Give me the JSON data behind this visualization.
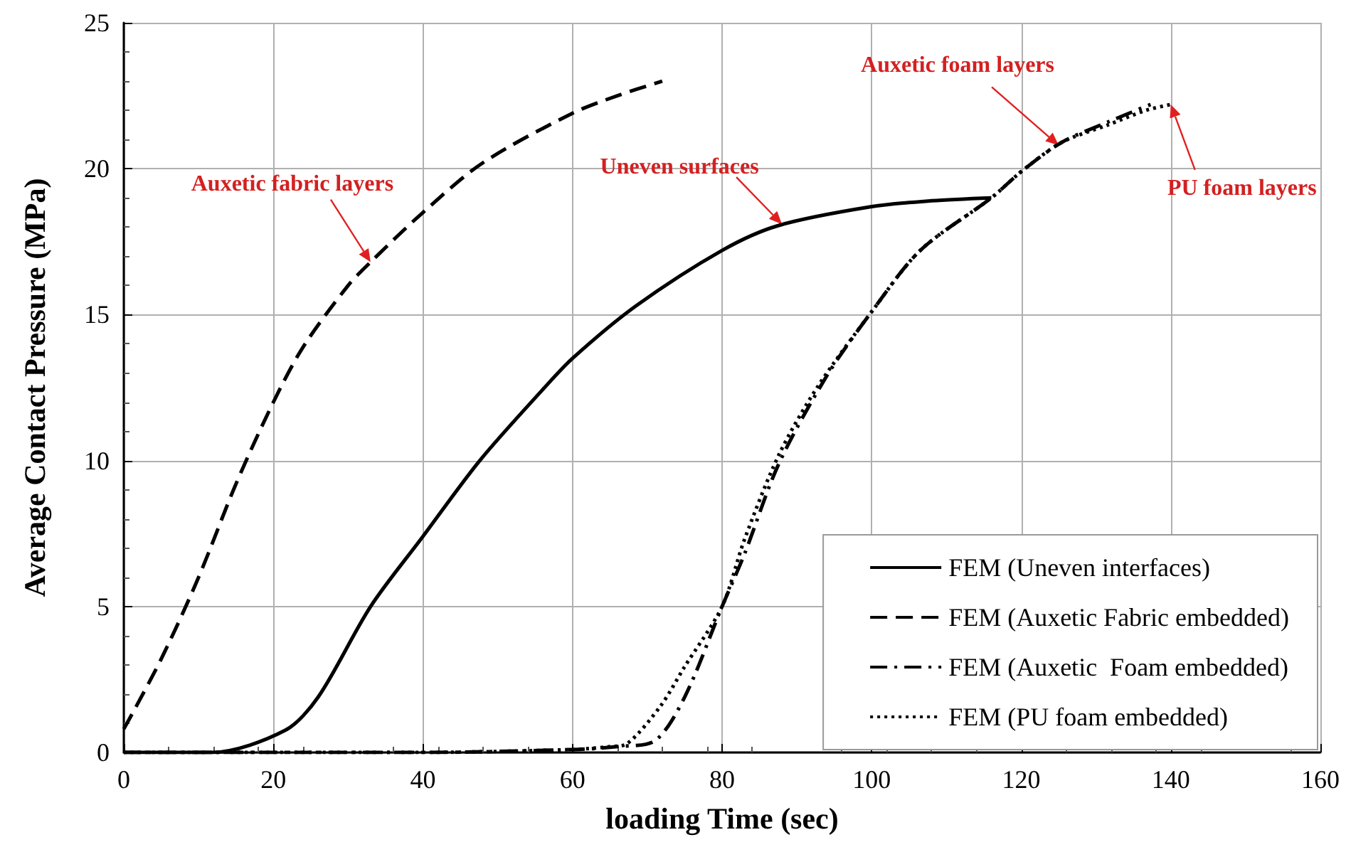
{
  "chart_data": {
    "type": "line",
    "xlabel": "loading Time (sec)",
    "ylabel": "Average Contact Pressure (MPa)",
    "xlim": [
      0,
      160
    ],
    "xticks": [
      0,
      20,
      40,
      60,
      80,
      100,
      120,
      140,
      160
    ],
    "ylim": [
      0,
      25
    ],
    "yticks": [
      0,
      5,
      10,
      15,
      20,
      25
    ],
    "grid": true,
    "legend": "bottom right",
    "marker": "none",
    "series": [
      {
        "name": "FEM (Uneven interfaces)",
        "color": "#000000",
        "line_style": "solid",
        "x": [
          0,
          11.8,
          21.6,
          26,
          33,
          40,
          47.6,
          55.9,
          60,
          68.5,
          80,
          87.5,
          100,
          108,
          116
        ],
        "values": [
          0,
          0,
          0.76,
          1.9,
          5.0,
          7.4,
          10.0,
          12.4,
          13.5,
          15.3,
          17.2,
          18.05,
          18.7,
          18.9,
          19.0
        ]
      },
      {
        "name": "FEM (Auxetic Fabric embedded)",
        "color": "#000000",
        "line_style": "dashed",
        "x": [
          0,
          5,
          10,
          15,
          20,
          24,
          30,
          33,
          40,
          48,
          60,
          66,
          72
        ],
        "values": [
          0.8,
          3.2,
          6.0,
          9.2,
          12.0,
          13.9,
          16.0,
          16.8,
          18.5,
          20.2,
          21.9,
          22.5,
          23.0
        ]
      },
      {
        "name": "FEM (Auxetic  Foam embedded)",
        "color": "#000000",
        "line_style": "dashdot",
        "x": [
          0,
          20,
          40,
          60,
          66,
          71,
          75,
          80,
          83,
          87.6,
          94,
          100,
          106.5,
          116,
          120,
          125.4,
          131.6,
          137.3
        ],
        "values": [
          0,
          0,
          0,
          0.1,
          0.2,
          0.4,
          1.9,
          5.0,
          6.8,
          9.9,
          12.9,
          15.1,
          17.2,
          19.0,
          19.9,
          20.9,
          21.6,
          22.2
        ]
      },
      {
        "name": "FEM (PU foam embedded)",
        "color": "#000000",
        "line_style": "dotted",
        "x": [
          0,
          20,
          40,
          60,
          65,
          67.3,
          71.8,
          74.9,
          80,
          83,
          87.6,
          92.7,
          100,
          106.5,
          116,
          120,
          125.4,
          131.6,
          136.7,
          140
        ],
        "values": [
          0,
          0,
          0,
          0.1,
          0.2,
          0.3,
          1.6,
          2.9,
          5.0,
          7.3,
          10.2,
          12.5,
          15.1,
          17.2,
          19.0,
          19.9,
          20.9,
          21.5,
          22.0,
          22.2
        ]
      }
    ],
    "annotations": [
      {
        "text": "Auxetic fabric layers",
        "x": 33,
        "y": 16.8
      },
      {
        "text": "Uneven surfaces",
        "x": 88,
        "y": 18.1
      },
      {
        "text": "Auxetic foam layers",
        "x": 125,
        "y": 20.8
      },
      {
        "text": "PU foam layers",
        "x": 140,
        "y": 22.2
      }
    ]
  }
}
